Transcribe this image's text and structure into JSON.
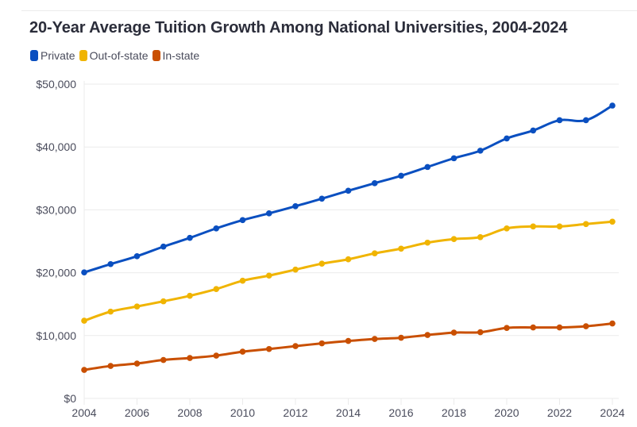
{
  "chart_data": {
    "type": "line",
    "title": "20-Year Average Tuition Growth Among National Universities, 2004-2024",
    "xlabel": "",
    "ylabel": "",
    "x": [
      2004,
      2005,
      2006,
      2007,
      2008,
      2009,
      2010,
      2011,
      2012,
      2013,
      2014,
      2015,
      2016,
      2017,
      2018,
      2019,
      2020,
      2021,
      2022,
      2023,
      2024
    ],
    "xlim": [
      2004,
      2024
    ],
    "ylim": [
      0,
      50000
    ],
    "x_ticks": [
      2004,
      2006,
      2008,
      2010,
      2012,
      2014,
      2016,
      2018,
      2020,
      2022,
      2024
    ],
    "x_tick_labels": [
      "2004",
      "2006",
      "2008",
      "2010",
      "2012",
      "2014",
      "2016",
      "2018",
      "2020",
      "2022",
      "2024"
    ],
    "y_ticks": [
      0,
      10000,
      20000,
      30000,
      40000,
      50000
    ],
    "y_tick_labels": [
      "$0",
      "$10,000",
      "$20,000",
      "$30,000",
      "$40,000",
      "$50,000"
    ],
    "grid": true,
    "legend_position": "top-left",
    "series": [
      {
        "name": "Private",
        "color": "#0a4fc0",
        "values": [
          20050,
          21370,
          22630,
          24150,
          25540,
          27050,
          28370,
          29440,
          30580,
          31780,
          33040,
          34240,
          35430,
          36820,
          38210,
          39410,
          41360,
          42620,
          44260,
          44260,
          46590
        ]
      },
      {
        "name": "Out-of-state",
        "color": "#f0b400",
        "values": [
          12360,
          13810,
          14630,
          15450,
          16330,
          17400,
          18730,
          19540,
          20490,
          21440,
          22130,
          23080,
          23830,
          24780,
          25350,
          25660,
          27050,
          27360,
          27360,
          27740,
          28120
        ]
      },
      {
        "name": "In-state",
        "color": "#c94f00",
        "values": [
          4540,
          5170,
          5550,
          6120,
          6430,
          6810,
          7440,
          7860,
          8320,
          8760,
          9140,
          9460,
          9650,
          10090,
          10470,
          10530,
          11220,
          11290,
          11290,
          11480,
          11920
        ]
      }
    ]
  }
}
